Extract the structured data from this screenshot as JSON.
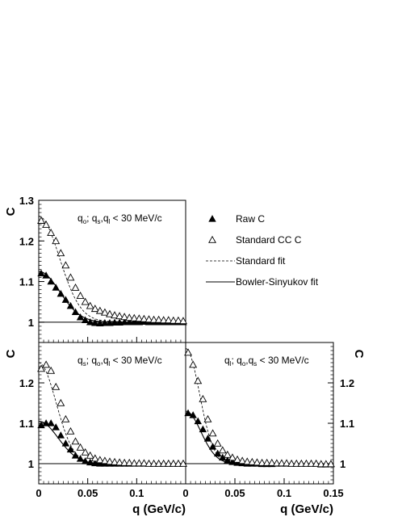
{
  "chart_data": [
    {
      "type": "scatter",
      "panel": "top-left",
      "annotation": {
        "var": "o",
        "sep": "; ",
        "others": [
          "s",
          "l"
        ],
        "cut": "< 30 MeV/c"
      },
      "ylabel": "C",
      "xlabel": "",
      "xlim": [
        0,
        0.15
      ],
      "ylim": [
        0.95,
        1.3
      ],
      "yticks": [
        {
          "v": 1,
          "label": "1"
        },
        {
          "v": 1.1,
          "label": "1.1"
        },
        {
          "v": 1.2,
          "label": "1.2"
        },
        {
          "v": 1.3,
          "label": "1.3"
        }
      ],
      "xticks": [],
      "yaxis_side": "left",
      "series": [
        {
          "name": "Raw C",
          "style": "filled-triangle",
          "x": [
            0.0025,
            0.0075,
            0.0125,
            0.0175,
            0.0225,
            0.0275,
            0.0325,
            0.0375,
            0.0425,
            0.0475,
            0.0525,
            0.0575,
            0.0625,
            0.0675,
            0.0725,
            0.0775,
            0.0825,
            0.0875,
            0.0925,
            0.0975,
            0.1025,
            0.1075,
            0.1125,
            0.1175,
            0.1225,
            0.1275,
            0.1325,
            0.1375,
            0.1425,
            0.1475
          ],
          "y": [
            1.12,
            1.115,
            1.1,
            1.085,
            1.07,
            1.055,
            1.04,
            1.025,
            1.012,
            1.005,
            1.0,
            0.998,
            0.997,
            0.998,
            0.998,
            0.999,
            0.999,
            1.0,
            1.0,
            1.0,
            1.0,
            1.001,
            1.0,
            1.0,
            1.0,
            1.0,
            1.0,
            1.0,
            1.0,
            1.0
          ]
        },
        {
          "name": "Standard CC C",
          "style": "open-triangle",
          "x": [
            0.0025,
            0.0075,
            0.0125,
            0.0175,
            0.0225,
            0.0275,
            0.0325,
            0.0375,
            0.0425,
            0.0475,
            0.0525,
            0.0575,
            0.0625,
            0.0675,
            0.0725,
            0.0775,
            0.0825,
            0.0875,
            0.0925,
            0.0975,
            0.1025,
            0.1075,
            0.1125,
            0.1175,
            0.1225,
            0.1275,
            0.1325,
            0.1375,
            0.1425,
            0.1475
          ],
          "y": [
            1.25,
            1.24,
            1.22,
            1.2,
            1.17,
            1.14,
            1.11,
            1.085,
            1.065,
            1.05,
            1.04,
            1.033,
            1.028,
            1.024,
            1.02,
            1.017,
            1.015,
            1.013,
            1.011,
            1.01,
            1.009,
            1.008,
            1.007,
            1.006,
            1.006,
            1.005,
            1.005,
            1.004,
            1.004,
            1.003
          ]
        }
      ],
      "fits": [
        {
          "name": "Standard fit",
          "style": "dashed",
          "base": 1.0,
          "amp": 0.255,
          "r": 0.03,
          "tail": 0.006
        },
        {
          "name": "Bowler-Sinyukov fit",
          "style": "solid",
          "base": 1.0,
          "amp": 0.125,
          "r": 0.03,
          "tail": 0.0
        }
      ],
      "legend": [
        {
          "style": "filled-triangle",
          "label": "Raw C"
        },
        {
          "style": "open-triangle",
          "label": "Standard CC C"
        },
        {
          "style": "dashed",
          "label": "Standard fit"
        },
        {
          "style": "solid",
          "label": "Bowler-Sinyukov fit"
        }
      ]
    },
    {
      "type": "scatter",
      "panel": "bottom-left",
      "annotation": {
        "var": "s",
        "sep": "; ",
        "others": [
          "o",
          "l"
        ],
        "cut": "< 30 MeV/c"
      },
      "ylabel": "C",
      "xlabel": "q (GeV/c)",
      "xlim": [
        0,
        0.15
      ],
      "ylim": [
        0.95,
        1.3
      ],
      "yticks": [
        {
          "v": 1,
          "label": "1"
        },
        {
          "v": 1.1,
          "label": "1.1"
        },
        {
          "v": 1.2,
          "label": "1.2"
        }
      ],
      "xticks": [
        {
          "v": 0,
          "label": "0"
        },
        {
          "v": 0.05,
          "label": "0.05"
        },
        {
          "v": 0.1,
          "label": "0.1"
        }
      ],
      "yaxis_side": "left",
      "series": [
        {
          "name": "Raw C",
          "style": "filled-triangle",
          "x": [
            0.0025,
            0.0075,
            0.0125,
            0.0175,
            0.0225,
            0.0275,
            0.0325,
            0.0375,
            0.0425,
            0.0475,
            0.0525,
            0.0575,
            0.0625,
            0.0675,
            0.0725,
            0.0775,
            0.0825,
            0.0875,
            0.0925,
            0.0975,
            0.1025,
            0.1075,
            0.1125,
            0.1175,
            0.1225,
            0.1275,
            0.1325,
            0.1375,
            0.1425,
            0.1475
          ],
          "y": [
            1.095,
            1.1,
            1.1,
            1.09,
            1.07,
            1.05,
            1.035,
            1.02,
            1.012,
            1.006,
            1.003,
            1.001,
            1.0,
            1.0,
            1.0,
            1.0,
            1.0,
            1.0,
            1.0,
            1.0,
            1.0,
            1.0,
            1.0,
            1.0,
            1.0,
            1.0,
            1.0,
            1.0,
            1.0,
            1.0
          ]
        },
        {
          "name": "Standard CC C",
          "style": "open-triangle",
          "x": [
            0.0025,
            0.0075,
            0.0125,
            0.0175,
            0.0225,
            0.0275,
            0.0325,
            0.0375,
            0.0425,
            0.0475,
            0.0525,
            0.0575,
            0.0625,
            0.0675,
            0.0725,
            0.0775,
            0.0825,
            0.0875,
            0.0925,
            0.0975,
            0.1025,
            0.1075,
            0.1125,
            0.1175,
            0.1225,
            0.1275,
            0.1325,
            0.1375,
            0.1425,
            0.1475
          ],
          "y": [
            1.235,
            1.245,
            1.23,
            1.19,
            1.15,
            1.11,
            1.08,
            1.055,
            1.04,
            1.028,
            1.02,
            1.013,
            1.009,
            1.007,
            1.005,
            1.004,
            1.003,
            1.002,
            1.002,
            1.001,
            1.001,
            1.001,
            1.0,
            1.0,
            1.0,
            1.0,
            1.0,
            1.0,
            1.0,
            1.0
          ]
        }
      ],
      "fits": [
        {
          "name": "Standard fit",
          "style": "dashed",
          "base": 1.0,
          "amp": 0.25,
          "r": 0.025,
          "tail": 0.0
        },
        {
          "name": "Bowler-Sinyukov fit",
          "style": "solid",
          "base": 1.0,
          "amp": 0.105,
          "r": 0.028,
          "tail": 0.0
        }
      ],
      "legend": []
    },
    {
      "type": "scatter",
      "panel": "bottom-right",
      "annotation": {
        "var": "l",
        "sep": "; ",
        "others": [
          "o",
          "s"
        ],
        "cut": "< 30 MeV/c"
      },
      "ylabel": "C",
      "xlabel": "q (GeV/c)",
      "xlim": [
        0,
        0.15
      ],
      "ylim": [
        0.95,
        1.3
      ],
      "yticks": [
        {
          "v": 1,
          "label": "1"
        },
        {
          "v": 1.1,
          "label": "1.1"
        },
        {
          "v": 1.2,
          "label": "1.2"
        }
      ],
      "xticks": [
        {
          "v": 0,
          "label": "0"
        },
        {
          "v": 0.05,
          "label": "0.05"
        },
        {
          "v": 0.1,
          "label": "0.1"
        },
        {
          "v": 0.15,
          "label": "0.15"
        }
      ],
      "yaxis_side": "right",
      "series": [
        {
          "name": "Raw C",
          "style": "filled-triangle",
          "x": [
            0.0025,
            0.0075,
            0.0125,
            0.0175,
            0.0225,
            0.0275,
            0.0325,
            0.0375,
            0.0425,
            0.0475,
            0.0525,
            0.0575,
            0.0625,
            0.0675,
            0.0725,
            0.0775,
            0.0825,
            0.0875,
            0.0925,
            0.0975,
            0.1025,
            0.1075,
            0.1125,
            0.1175,
            0.1225,
            0.1275,
            0.1325,
            0.1375,
            0.1425,
            0.1475
          ],
          "y": [
            1.125,
            1.12,
            1.105,
            1.085,
            1.062,
            1.042,
            1.025,
            1.015,
            1.008,
            1.004,
            1.002,
            1.001,
            1.0,
            1.0,
            1.0,
            0.999,
            0.999,
            0.999,
            1.0,
            1.0,
            1.0,
            1.0,
            1.0,
            1.0,
            1.0,
            1.0,
            1.0,
            0.998,
            0.998,
            0.999
          ]
        },
        {
          "name": "Standard CC C",
          "style": "open-triangle",
          "x": [
            0.0025,
            0.0075,
            0.0125,
            0.0175,
            0.0225,
            0.0275,
            0.0325,
            0.0375,
            0.0425,
            0.0475,
            0.0525,
            0.0575,
            0.0625,
            0.0675,
            0.0725,
            0.0775,
            0.0825,
            0.0875,
            0.0925,
            0.0975,
            0.1025,
            0.1075,
            0.1125,
            0.1175,
            0.1225,
            0.1275,
            0.1325,
            0.1375,
            0.1425,
            0.1475
          ],
          "y": [
            1.275,
            1.245,
            1.205,
            1.16,
            1.11,
            1.075,
            1.05,
            1.033,
            1.022,
            1.015,
            1.01,
            1.007,
            1.005,
            1.004,
            1.003,
            1.002,
            1.002,
            1.002,
            1.001,
            1.001,
            1.001,
            1.0,
            1.0,
            1.0,
            1.0,
            1.0,
            1.0,
            0.999,
            0.999,
            0.999
          ]
        }
      ],
      "fits": [
        {
          "name": "Standard fit",
          "style": "dashed",
          "base": 1.0,
          "amp": 0.285,
          "r": 0.02,
          "tail": 0.0
        },
        {
          "name": "Bowler-Sinyukov fit",
          "style": "solid",
          "base": 1.0,
          "amp": 0.13,
          "r": 0.022,
          "tail": 0.0
        }
      ],
      "legend": []
    }
  ]
}
